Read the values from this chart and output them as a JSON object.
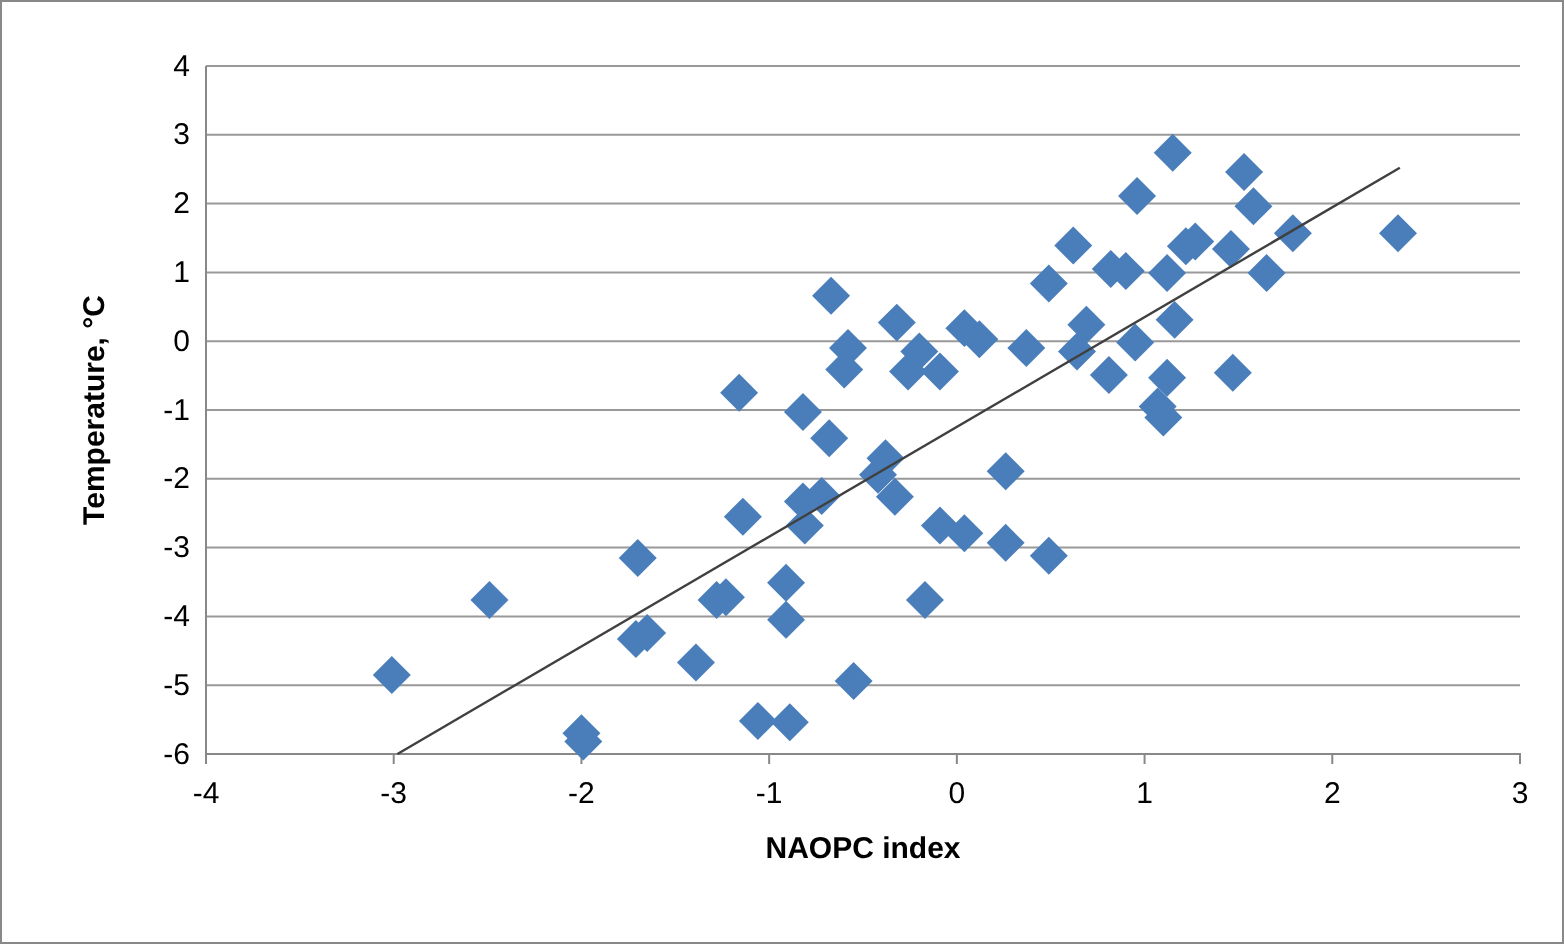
{
  "chart_data": {
    "type": "scatter",
    "xlabel": "NAOPC index",
    "ylabel": "Temperature, °C",
    "xlim": [
      -4,
      3
    ],
    "xticks": [
      -4,
      -3,
      -2,
      -1,
      0,
      1,
      2,
      3
    ],
    "ylim": [
      -6,
      4
    ],
    "yticks": [
      -6,
      -5,
      -4,
      -3,
      -2,
      -1,
      0,
      1,
      2,
      3,
      4
    ],
    "grid": "y",
    "marker": "diamond",
    "series": [
      {
        "color": "#4a7ebb",
        "x": [
          -3.01,
          -2.49,
          -2.0,
          -1.99,
          -1.7,
          -1.71,
          -1.65,
          -1.39,
          -1.28,
          -1.23,
          -1.16,
          -1.14,
          -0.91,
          -0.91,
          -1.06,
          -0.89,
          -0.55,
          -0.82,
          -0.81,
          -0.82,
          -0.72,
          -0.68,
          -0.67,
          -0.58,
          -0.6,
          -0.38,
          -0.42,
          -0.33,
          -0.32,
          -0.2,
          -0.26,
          -0.09,
          -0.09,
          0.04,
          -0.17,
          0.04,
          0.12,
          0.26,
          0.26,
          0.49,
          0.37,
          0.49,
          0.62,
          0.64,
          0.69,
          0.81,
          0.82,
          0.9,
          0.95,
          0.96,
          1.07,
          1.1,
          1.12,
          1.12,
          1.16,
          1.15,
          1.22,
          1.27,
          1.46,
          1.47,
          1.53,
          1.58,
          1.65,
          1.79,
          2.35
        ],
        "values": [
          -4.85,
          -3.76,
          -5.7,
          -5.82,
          -3.15,
          -4.33,
          -4.24,
          -4.67,
          -3.76,
          -3.72,
          -0.75,
          -2.55,
          -3.51,
          -4.05,
          -5.52,
          -5.54,
          -4.94,
          -1.03,
          -2.68,
          -2.33,
          -2.25,
          -1.41,
          0.66,
          -0.1,
          -0.41,
          -1.7,
          -1.94,
          -2.26,
          0.27,
          -0.15,
          -0.44,
          -0.44,
          -2.68,
          -2.79,
          -3.76,
          0.19,
          0.03,
          -1.89,
          -2.93,
          -3.12,
          -0.1,
          0.84,
          1.39,
          -0.15,
          0.24,
          -0.49,
          1.05,
          1.02,
          -0.02,
          2.11,
          -0.95,
          -1.11,
          -0.53,
          0.99,
          0.31,
          2.74,
          1.38,
          1.45,
          1.34,
          -0.46,
          2.46,
          1.96,
          0.99,
          1.57,
          1.57
        ]
      },
      {
        "type": "line",
        "color": "#404040",
        "marker": "none",
        "line_style": "solid",
        "x": [
          -2.98,
          2.36
        ],
        "values": [
          -6,
          2.52
        ]
      }
    ]
  }
}
